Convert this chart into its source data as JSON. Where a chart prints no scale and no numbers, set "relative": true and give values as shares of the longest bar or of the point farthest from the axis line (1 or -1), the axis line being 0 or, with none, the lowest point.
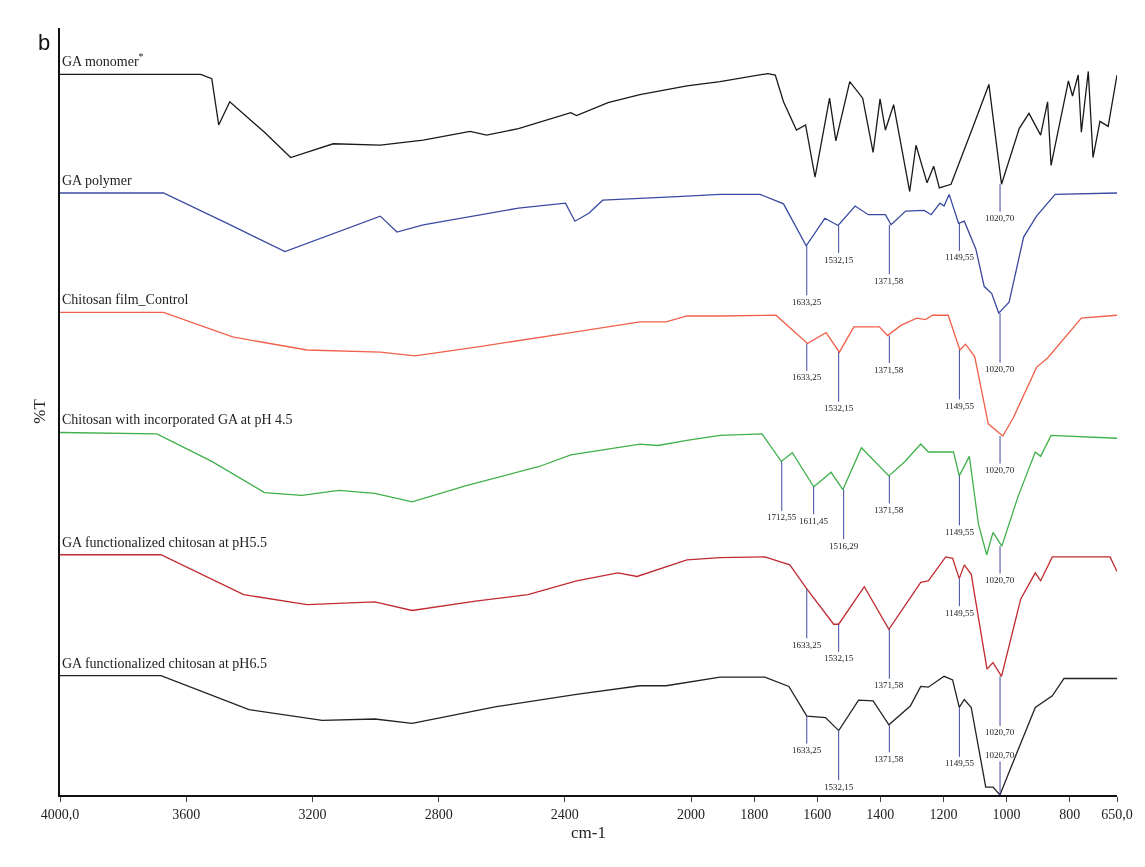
{
  "chart_data": {
    "type": "line",
    "relative": true,
    "legend": false,
    "xlabel": "cm-1",
    "ylabel": "%T",
    "xlim": [
      4000,
      650
    ],
    "xticks": [
      {
        "value": 4000,
        "label": "4000,0"
      },
      3600,
      3200,
      2800,
      2400,
      2000,
      1800,
      1600,
      1400,
      1200,
      1000,
      800,
      {
        "value": 650,
        "label": "650,0"
      }
    ],
    "series": [
      {
        "name": "GA monomer$^{*}$",
        "color": "#1a1a1a",
        "x": [
          4000,
          3554,
          3519,
          3497,
          3462,
          3352,
          3269,
          3134,
          2985,
          2849,
          2700,
          2648,
          2547,
          2381,
          2363,
          2263,
          2162,
          2013,
          1908,
          1757,
          1733,
          1707,
          1666,
          1637,
          1607,
          1561,
          1541,
          1497,
          1456,
          1423,
          1401,
          1384,
          1358,
          1307,
          1287,
          1252,
          1231,
          1213,
          1176,
          1106,
          1056,
          1016,
          960,
          929,
          892,
          870,
          859,
          804,
          791,
          773,
          763,
          741,
          726,
          704,
          678,
          650
        ],
        "values": [
          0.996,
          0.996,
          0.99,
          0.926,
          0.958,
          0.916,
          0.881,
          0.9,
          0.898,
          0.905,
          0.917,
          0.912,
          0.921,
          0.943,
          0.939,
          0.957,
          0.968,
          0.98,
          0.986,
          0.997,
          0.995,
          0.958,
          0.919,
          0.926,
          0.854,
          0.963,
          0.904,
          0.986,
          0.963,
          0.888,
          0.962,
          0.919,
          0.954,
          0.834,
          0.898,
          0.846,
          0.869,
          0.839,
          0.844,
          0.924,
          0.982,
          0.844,
          0.921,
          0.942,
          0.912,
          0.958,
          0.87,
          0.987,
          0.966,
          0.995,
          0.916,
          1.0,
          0.881,
          0.931,
          0.924,
          0.995
        ]
      },
      {
        "name": "GA polymer",
        "color": "#3a4aa0",
        "x": [
          4000,
          3672,
          3470,
          3287,
          2985,
          2932,
          2849,
          2547,
          2398,
          2368,
          2324,
          2280,
          2044,
          1908,
          1781,
          1707,
          1635,
          1576,
          1534,
          1480,
          1438,
          1384,
          1366,
          1320,
          1261,
          1239,
          1211,
          1198,
          1182,
          1152,
          1134,
          1097,
          1071,
          1047,
          1025,
          992,
          946,
          905,
          846,
          650
        ],
        "values": [
          0.832,
          0.832,
          0.79,
          0.751,
          0.8,
          0.778,
          0.788,
          0.811,
          0.818,
          0.793,
          0.804,
          0.822,
          0.827,
          0.83,
          0.83,
          0.817,
          0.759,
          0.797,
          0.787,
          0.814,
          0.802,
          0.802,
          0.788,
          0.807,
          0.808,
          0.802,
          0.818,
          0.814,
          0.83,
          0.79,
          0.793,
          0.754,
          0.703,
          0.693,
          0.666,
          0.681,
          0.771,
          0.8,
          0.83,
          0.832
        ]
      },
      {
        "name": "Chitosan film_Control",
        "color": "#f0604a",
        "x": [
          4000,
          3672,
          3453,
          3217,
          2985,
          2875,
          2665,
          2381,
          2162,
          2079,
          2013,
          1908,
          1731,
          1631,
          1572,
          1530,
          1484,
          1403,
          1377,
          1335,
          1285,
          1257,
          1235,
          1185,
          1148,
          1130,
          1101,
          1058,
          1012,
          979,
          905,
          870,
          763,
          650
        ],
        "values": [
          0.667,
          0.667,
          0.633,
          0.615,
          0.612,
          0.607,
          0.62,
          0.639,
          0.654,
          0.654,
          0.662,
          0.662,
          0.663,
          0.624,
          0.639,
          0.612,
          0.647,
          0.647,
          0.635,
          0.649,
          0.659,
          0.657,
          0.663,
          0.663,
          0.615,
          0.623,
          0.606,
          0.513,
          0.496,
          0.521,
          0.591,
          0.604,
          0.659,
          0.663
        ]
      },
      {
        "name": "Chitosan with incorporated GA at pH 4.5",
        "color": "#40b04a",
        "x": [
          4000,
          3693,
          3519,
          3352,
          3234,
          3116,
          3002,
          2884,
          2718,
          2481,
          2381,
          2162,
          2105,
          2013,
          1908,
          1775,
          1714,
          1679,
          1611,
          1556,
          1519,
          1460,
          1373,
          1322,
          1272,
          1248,
          1168,
          1150,
          1118,
          1089,
          1063,
          1043,
          1015,
          964,
          909,
          892,
          859,
          650
        ],
        "values": [
          0.501,
          0.499,
          0.461,
          0.418,
          0.414,
          0.421,
          0.417,
          0.405,
          0.427,
          0.454,
          0.47,
          0.485,
          0.483,
          0.49,
          0.497,
          0.499,
          0.461,
          0.473,
          0.426,
          0.446,
          0.422,
          0.48,
          0.441,
          0.461,
          0.485,
          0.474,
          0.474,
          0.441,
          0.468,
          0.374,
          0.332,
          0.363,
          0.344,
          0.412,
          0.474,
          0.468,
          0.497,
          0.493
        ]
      },
      {
        "name": "GA functionalized chitosan at pH5.5",
        "color": "#c02a30",
        "x": [
          4000,
          3680,
          3418,
          3217,
          3002,
          2884,
          2683,
          2517,
          2363,
          2232,
          2171,
          2013,
          1908,
          1766,
          1687,
          1633,
          1548,
          1532,
          1451,
          1373,
          1272,
          1248,
          1193,
          1171,
          1150,
          1134,
          1112,
          1062,
          1043,
          1016,
          955,
          909,
          892,
          855,
          672,
          650
        ],
        "values": [
          0.332,
          0.332,
          0.277,
          0.263,
          0.267,
          0.255,
          0.268,
          0.277,
          0.296,
          0.307,
          0.302,
          0.325,
          0.328,
          0.329,
          0.318,
          0.285,
          0.236,
          0.236,
          0.288,
          0.229,
          0.294,
          0.296,
          0.329,
          0.327,
          0.299,
          0.318,
          0.305,
          0.174,
          0.183,
          0.164,
          0.271,
          0.307,
          0.296,
          0.329,
          0.329,
          0.309
        ]
      },
      {
        "name": "GA functionalized chitosan at pH6.5",
        "color": "#222222",
        "x": [
          4000,
          3680,
          3401,
          3169,
          3002,
          2884,
          2617,
          2363,
          2162,
          2079,
          1908,
          1766,
          1690,
          1633,
          1574,
          1532,
          1469,
          1423,
          1373,
          1305,
          1272,
          1248,
          1198,
          1171,
          1150,
          1134,
          1112,
          1066,
          1043,
          1021,
          988,
          909,
          855,
          818,
          650
        ],
        "values": [
          0.165,
          0.165,
          0.118,
          0.103,
          0.105,
          0.099,
          0.122,
          0.139,
          0.151,
          0.151,
          0.163,
          0.163,
          0.15,
          0.109,
          0.107,
          0.089,
          0.131,
          0.13,
          0.097,
          0.123,
          0.15,
          0.149,
          0.164,
          0.159,
          0.121,
          0.132,
          0.121,
          0.011,
          0.011,
          0.0,
          0.036,
          0.121,
          0.137,
          0.161,
          0.161
        ]
      }
    ],
    "annotations": [
      "b",
      {
        "text": "1020,70",
        "x": 1020.7,
        "y": 0.844
      },
      {
        "text": "1633,25",
        "x": 1633.25,
        "y": 0.759
      },
      {
        "text": "1532,15",
        "x": 1532.15,
        "y": 0.787
      },
      {
        "text": "1371,58",
        "x": 1371.58,
        "y": 0.788
      },
      {
        "text": "1149,55",
        "x": 1149.55,
        "y": 0.79
      },
      {
        "text": "1020,70",
        "x": 1020.7,
        "y": 0.666
      },
      {
        "text": "1633,25",
        "x": 1633.25,
        "y": 0.624
      },
      {
        "text": "1532,15",
        "x": 1532.15,
        "y": 0.612
      },
      {
        "text": "1371,58",
        "x": 1371.58,
        "y": 0.635
      },
      {
        "text": "1149,55",
        "x": 1149.55,
        "y": 0.615
      },
      {
        "text": "1020,70",
        "x": 1020.7,
        "y": 0.496
      },
      {
        "text": "1712,55",
        "x": 1712.55,
        "y": 0.461
      },
      {
        "text": "1611,45",
        "x": 1611.45,
        "y": 0.426
      },
      {
        "text": "1516,29",
        "x": 1516.29,
        "y": 0.422
      },
      {
        "text": "1371,58",
        "x": 1371.58,
        "y": 0.441
      },
      {
        "text": "1149,55",
        "x": 1149.55,
        "y": 0.441
      },
      {
        "text": "1020,70",
        "x": 1020.7,
        "y": 0.344
      },
      {
        "text": "1633,25",
        "x": 1633.25,
        "y": 0.285
      },
      {
        "text": "1532,15",
        "x": 1532.15,
        "y": 0.236
      },
      {
        "text": "1371,58",
        "x": 1371.58,
        "y": 0.229
      },
      {
        "text": "1149,55",
        "x": 1149.55,
        "y": 0.299
      },
      {
        "text": "1020,70",
        "x": 1020.7,
        "y": 0.164
      },
      {
        "text": "1633,25",
        "x": 1633.25,
        "y": 0.109
      },
      {
        "text": "1532,15",
        "x": 1532.15,
        "y": 0.089
      },
      {
        "text": "1371,58",
        "x": 1371.58,
        "y": 0.097
      },
      {
        "text": "1149,55",
        "x": 1149.55,
        "y": 0.121
      },
      {
        "text": "1020,70",
        "x": 1020.7,
        "y": 0.0
      }
    ]
  }
}
